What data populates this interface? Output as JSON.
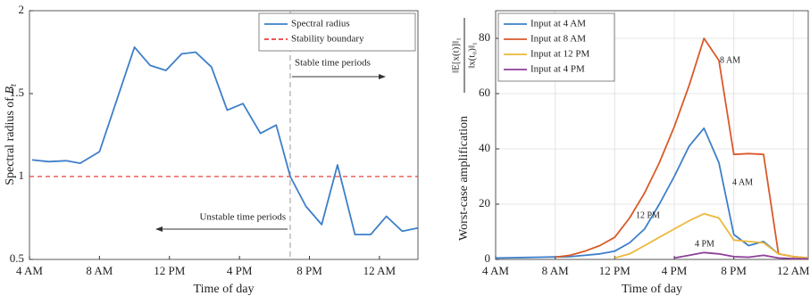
{
  "chart_data": [
    {
      "type": "line",
      "xlabel": "Time of day",
      "ylabel": {
        "text": "Spectral radius of ",
        "var": "B",
        "sub": "t"
      },
      "xlim": [
        4,
        26.2
      ],
      "xticks": [
        {
          "value": 4,
          "label": "4 AM"
        },
        {
          "value": 8,
          "label": "8 AM"
        },
        {
          "value": 12,
          "label": "12 PM"
        },
        {
          "value": 16,
          "label": "4 PM"
        },
        {
          "value": 20,
          "label": "8 PM"
        },
        {
          "value": 24,
          "label": "12 AM"
        }
      ],
      "ylim": [
        0.5,
        2
      ],
      "yticks": [
        0.5,
        1,
        1.5,
        2
      ],
      "grid": false,
      "legend": "upper right",
      "series": [
        {
          "name": "Spectral radius",
          "color": "#3d7fc9",
          "x": [
            4.15,
            5.1,
            6.1,
            6.9,
            8.0,
            10.0,
            10.9,
            11.8,
            12.7,
            13.5,
            14.4,
            15.3,
            16.2,
            17.2,
            18.1,
            18.9,
            19.8,
            20.7,
            21.6,
            22.6,
            23.5,
            24.4,
            25.3,
            26.2
          ],
          "values": [
            1.1,
            1.09,
            1.095,
            1.08,
            1.15,
            1.78,
            1.67,
            1.64,
            1.74,
            1.75,
            1.66,
            1.4,
            1.44,
            1.26,
            1.31,
            1.0,
            0.82,
            0.71,
            1.07,
            0.65,
            0.65,
            0.76,
            0.67,
            0.69
          ]
        }
      ],
      "hline": {
        "name": "Stability boundary",
        "value": 1,
        "color": "#e8413c"
      },
      "vline": {
        "value": 18.9,
        "color": "#aaaaaa"
      },
      "annotations": [
        "Stable time periods",
        "Unstable time periods"
      ]
    },
    {
      "type": "line",
      "xlabel": "Time of day",
      "ylabel": {
        "text": "Worst-case amplification",
        "numerator": "‖E[x(t)]‖₁",
        "denominator": "‖x(t₀)‖₁"
      },
      "xlim": [
        4,
        25
      ],
      "xticks": [
        {
          "value": 4,
          "label": "4 AM"
        },
        {
          "value": 8,
          "label": "8 AM"
        },
        {
          "value": 12,
          "label": "12 PM"
        },
        {
          "value": 16,
          "label": "4 PM"
        },
        {
          "value": 20,
          "label": "8 PM"
        },
        {
          "value": 24,
          "label": "12 AM"
        }
      ],
      "ylim": [
        0,
        90
      ],
      "yticks": [
        0,
        20,
        40,
        60,
        80
      ],
      "grid": true,
      "legend": "upper left",
      "x": [
        4,
        5,
        6,
        7,
        8,
        9,
        10,
        11,
        12,
        13,
        14,
        15,
        16,
        17,
        18,
        19,
        20,
        21,
        22,
        23,
        24,
        25
      ],
      "series": [
        {
          "name": "Input at 4 AM",
          "color": "#3d7fc9",
          "values": [
            0.5,
            0.6,
            0.7,
            0.8,
            0.9,
            1,
            1.5,
            2,
            3,
            6,
            11,
            20,
            30,
            41,
            47.5,
            35,
            9,
            5,
            6.5,
            2,
            1,
            0.5
          ]
        },
        {
          "name": "Input at 8 AM",
          "color": "#d95a2b",
          "values": [
            null,
            null,
            null,
            null,
            0.8,
            1.5,
            3,
            5,
            8,
            15,
            24,
            35,
            48,
            63,
            80,
            72,
            38,
            38.3,
            38,
            2,
            1,
            0.5
          ]
        },
        {
          "name": "Input at 12 PM",
          "color": "#edb83c",
          "values": [
            null,
            null,
            null,
            null,
            null,
            null,
            null,
            null,
            0.5,
            2,
            5,
            8,
            11,
            14,
            16.5,
            15,
            7,
            6.5,
            6,
            2,
            1,
            0.5
          ]
        },
        {
          "name": "Input at 4 PM",
          "color": "#8e3f9a",
          "values": [
            null,
            null,
            null,
            null,
            null,
            null,
            null,
            null,
            null,
            null,
            null,
            null,
            0.5,
            1.5,
            2.5,
            2,
            1,
            0.8,
            1.5,
            0.5,
            0.3,
            0.2
          ]
        }
      ],
      "annotations": [
        "8 AM",
        "4 AM",
        "12 PM",
        "4 PM"
      ]
    }
  ]
}
